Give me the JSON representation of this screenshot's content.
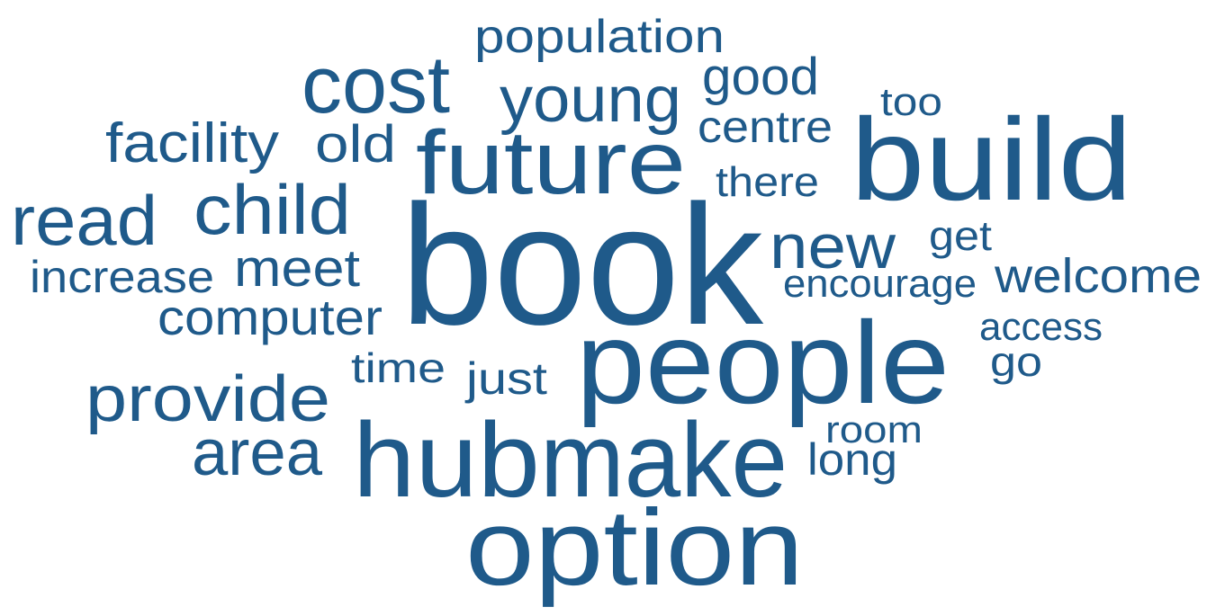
{
  "words": [
    "population",
    "cost",
    "young",
    "good",
    "too",
    "facility",
    "old",
    "future",
    "centre",
    "build",
    "there",
    "read",
    "child",
    "get",
    "new",
    "book",
    "increase",
    "meet",
    "welcome",
    "encourage",
    "computer",
    "access",
    "time",
    "just",
    "people",
    "go",
    "provide",
    "room",
    "area",
    "hub",
    "make",
    "long",
    "option"
  ]
}
